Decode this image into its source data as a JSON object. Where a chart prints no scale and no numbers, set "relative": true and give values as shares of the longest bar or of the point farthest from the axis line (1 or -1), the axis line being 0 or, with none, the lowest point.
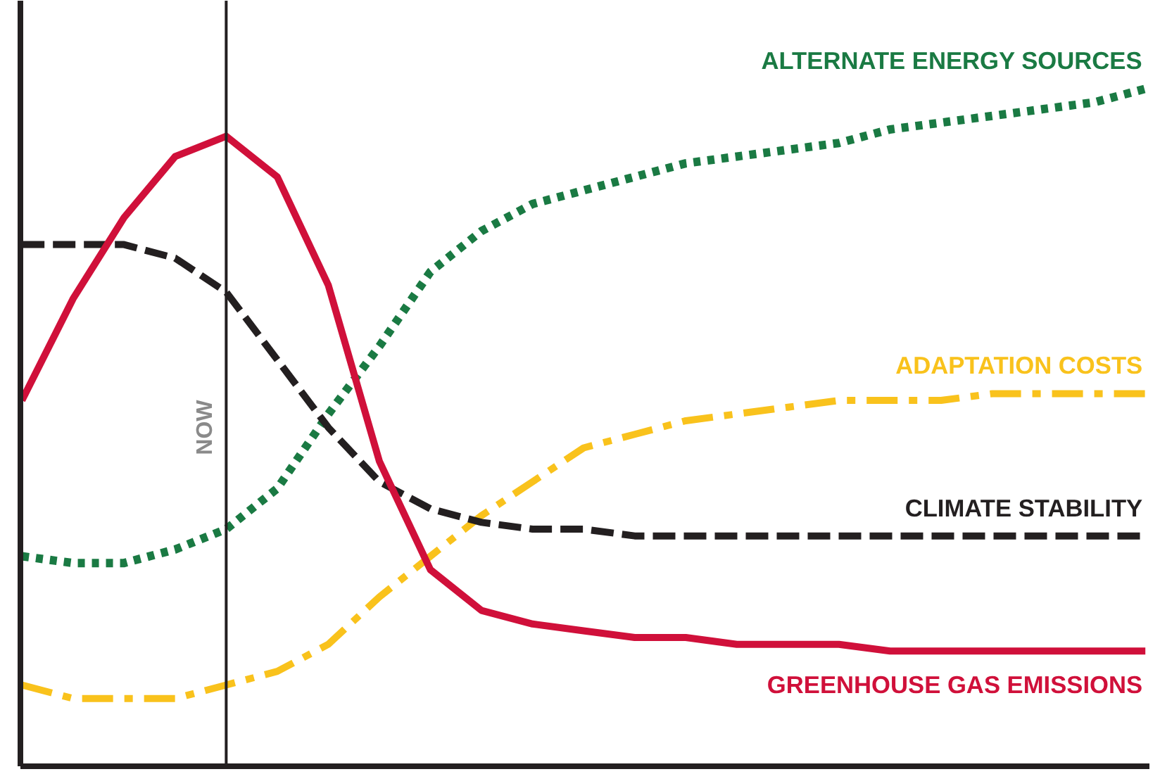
{
  "chart_data": {
    "type": "line",
    "relative": true,
    "categories": [
      null,
      null,
      null,
      null,
      null,
      null,
      null,
      null,
      null,
      null,
      null,
      null,
      null,
      null,
      null,
      null,
      null,
      null,
      null,
      null,
      null,
      null,
      null
    ],
    "series": [
      {
        "name": "ALTERNATE ENERGY SOURCES",
        "color": "#1a7a43",
        "line_style": "dotted",
        "values": [
          0.31,
          0.3,
          0.3,
          0.32,
          0.35,
          0.41,
          0.52,
          0.62,
          0.73,
          0.79,
          0.83,
          0.85,
          0.87,
          0.89,
          0.9,
          0.91,
          0.92,
          0.94,
          0.95,
          0.96,
          0.97,
          0.98,
          1
        ]
      },
      {
        "name": "ADAPTATION COSTS",
        "color": "#f9c21c",
        "line_style": "dashdot",
        "values": [
          0.12,
          0.1,
          0.1,
          0.1,
          0.12,
          0.14,
          0.18,
          0.25,
          0.31,
          0.37,
          0.42,
          0.47,
          0.49,
          0.51,
          0.52,
          0.53,
          0.54,
          0.54,
          0.54,
          0.55,
          0.55,
          0.55,
          0.55
        ]
      },
      {
        "name": "CLIMATE STABILITY",
        "color": "#231f20",
        "line_style": "dashed",
        "values": [
          0.77,
          0.77,
          0.77,
          0.75,
          0.7,
          0.6,
          0.5,
          0.42,
          0.38,
          0.36,
          0.35,
          0.35,
          0.34,
          0.34,
          0.34,
          0.34,
          0.34,
          0.34,
          0.34,
          0.34,
          0.34,
          0.34,
          0.34
        ]
      },
      {
        "name": "GREENHOUSE GAS EMISSIONS",
        "color": "#d0103a",
        "line_style": "solid",
        "values": [
          0.54,
          0.69,
          0.81,
          0.9,
          0.93,
          0.87,
          0.71,
          0.45,
          0.29,
          0.23,
          0.21,
          0.2,
          0.19,
          0.19,
          0.18,
          0.18,
          0.18,
          0.17,
          0.17,
          0.17,
          0.17,
          0.17,
          0.17
        ]
      }
    ],
    "annotations": [
      "NOW"
    ],
    "grid": false,
    "marker": "none",
    "tick_labels": false
  }
}
